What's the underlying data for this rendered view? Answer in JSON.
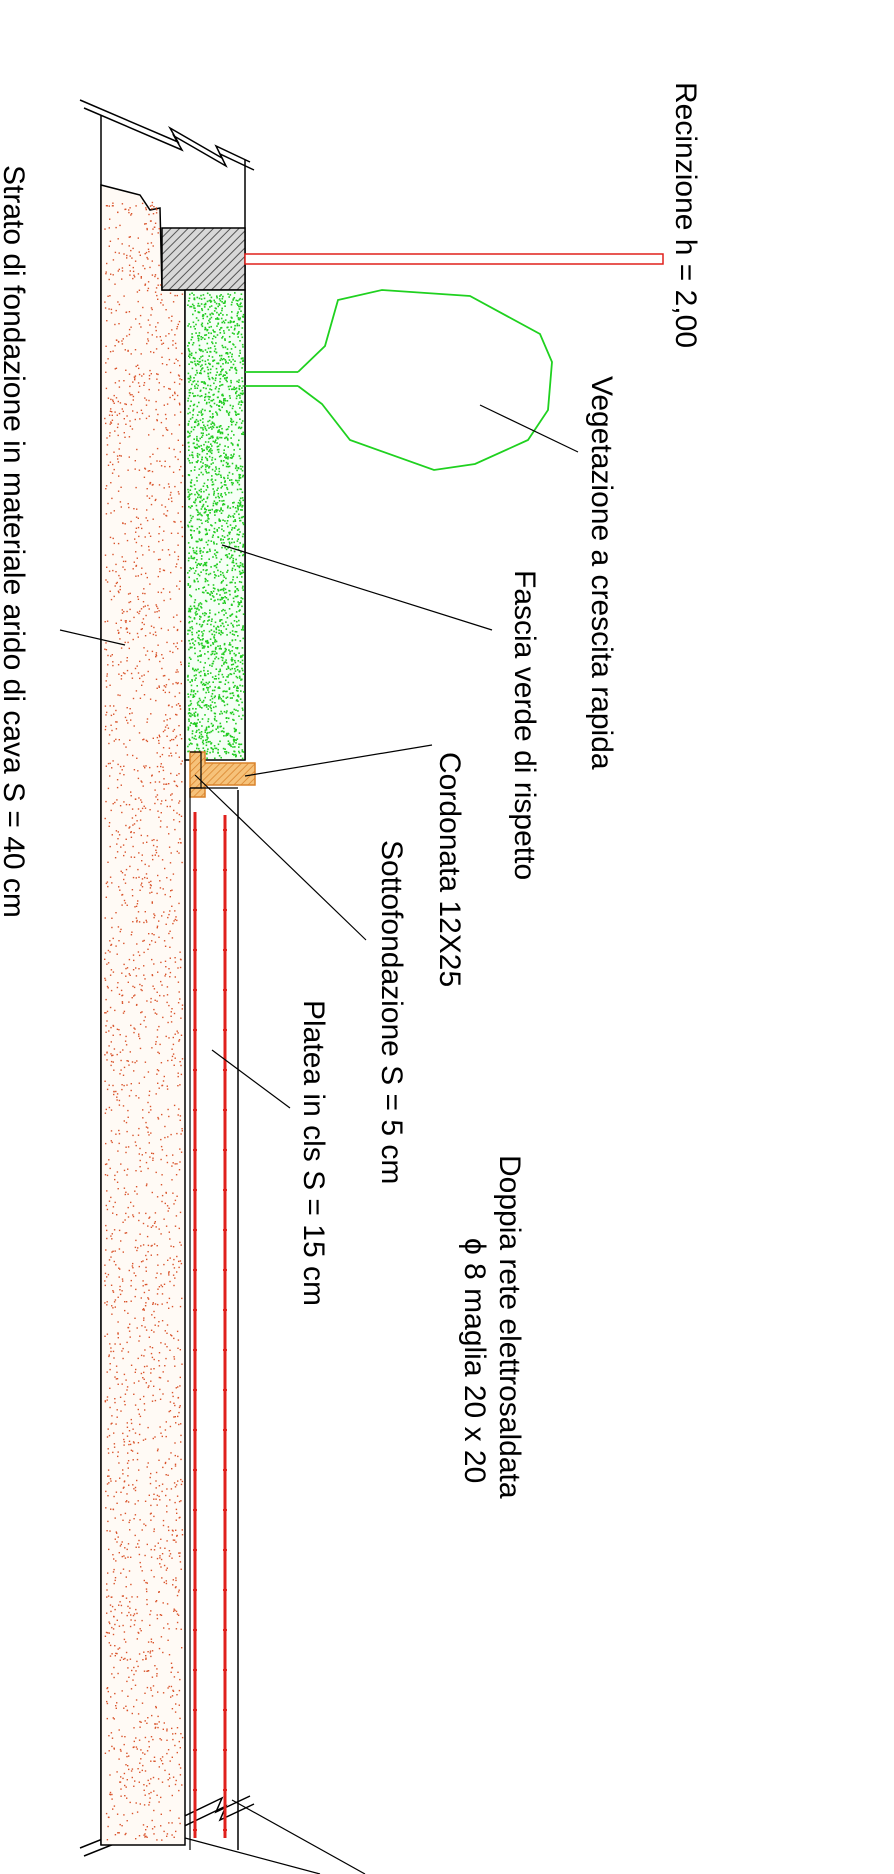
{
  "diagram": {
    "labels": {
      "recinzione": "Recinzione   h = 2,00",
      "vegetazione": "Vegetazione a crescita rapida",
      "fascia": "Fascia verde di rispetto",
      "cordonata": "Cordonata 12X25",
      "sottofondazione": "Sottofondazione S = 5 cm",
      "platea": "Platea in cls S = 15 cm",
      "doppia_rete_1": "Doppia rete elettrosaldata",
      "doppia_rete_2": "ϕ 8   maglia 20 x 20",
      "strato": "Strato di fondazione in materiale arido di cava  S = 40 cm"
    },
    "colors": {
      "fence": "#e0201c",
      "vegetation": "#1fd11f",
      "green_band": "#22cc22",
      "gravel_dots": "#d9532a",
      "curb": "#f0a040",
      "rebar": "#e0201c",
      "hatch": "#707070",
      "outline": "#000000"
    }
  }
}
